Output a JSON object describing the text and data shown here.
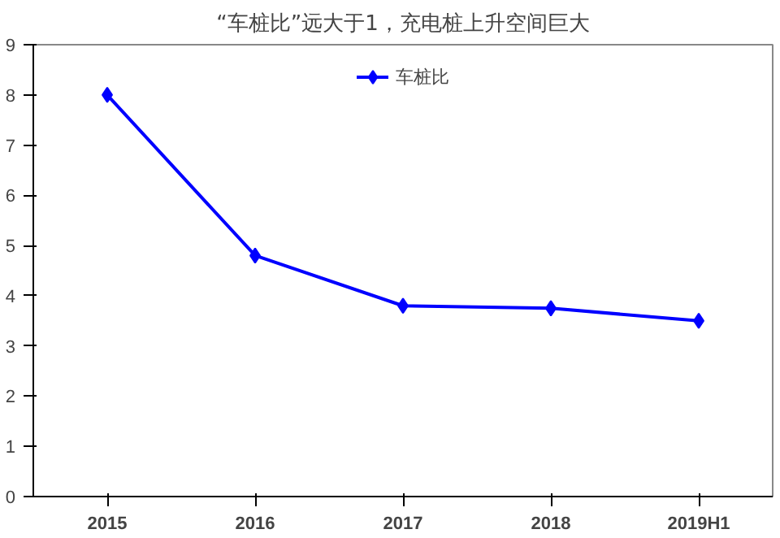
{
  "chart_data": {
    "type": "line",
    "title": "“车桩比”远大于1，充电桩上升空间巨大",
    "categories": [
      "2015",
      "2016",
      "2017",
      "2018",
      "2019H1"
    ],
    "series": [
      {
        "name": "车桩比",
        "color": "#0000ff",
        "values": [
          8.0,
          4.8,
          3.8,
          3.75,
          3.5
        ]
      }
    ],
    "ylim": [
      0,
      9
    ],
    "yticks": [
      0,
      1,
      2,
      3,
      4,
      5,
      6,
      7,
      8,
      9
    ],
    "grid": false,
    "legend": "top",
    "marker": "diamond",
    "line_style": "solid"
  }
}
